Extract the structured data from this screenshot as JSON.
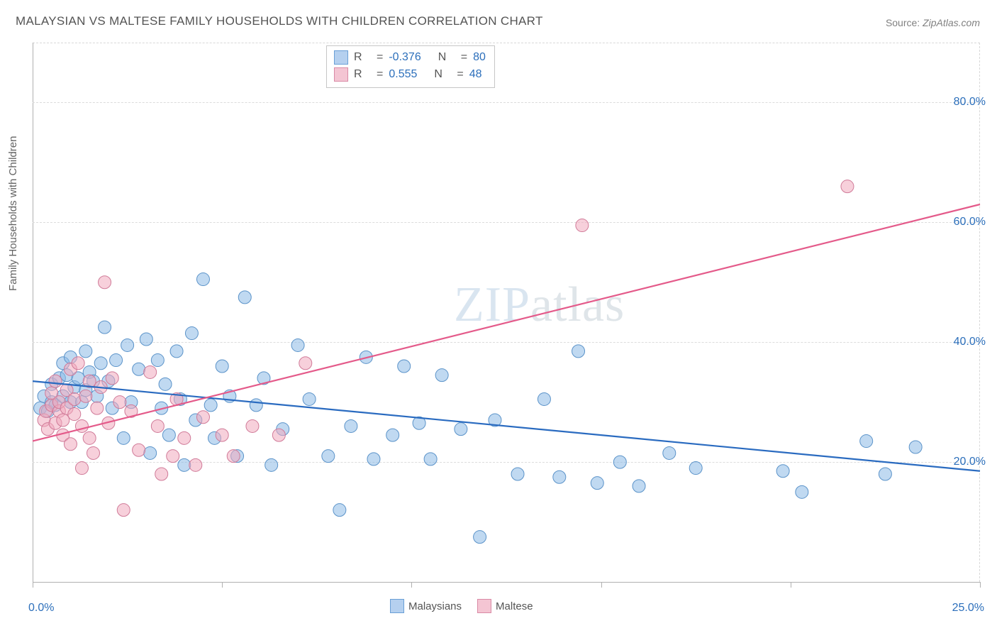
{
  "title": "MALAYSIAN VS MALTESE FAMILY HOUSEHOLDS WITH CHILDREN CORRELATION CHART",
  "source_label": "Source: ",
  "source_name": "ZipAtlas.com",
  "y_axis_title": "Family Households with Children",
  "watermark_a": "ZIP",
  "watermark_b": "atlas",
  "chart": {
    "type": "scatter",
    "xlim": [
      0,
      25
    ],
    "ylim": [
      0,
      90
    ],
    "x_ticks": [
      0,
      5,
      10,
      15,
      20,
      25
    ],
    "x_labels_shown": {
      "0": "0.0%",
      "25": "25.0%"
    },
    "y_gridlines": [
      20,
      40,
      60,
      80
    ],
    "y_labels": {
      "20": "20.0%",
      "40": "40.0%",
      "60": "60.0%",
      "80": "80.0%"
    },
    "marker_radius": 9,
    "background_color": "#ffffff",
    "grid_color": "#dcdcdc",
    "axis_color": "#b0b0b0",
    "label_color": "#2c6fbb",
    "series": [
      {
        "name": "Malaysians",
        "color_fill": "rgba(140,185,230,0.55)",
        "color_stroke": "#5b93c9",
        "trend_color": "#2a6bc0",
        "R": "-0.376",
        "N": "80",
        "trend": {
          "x1": 0,
          "y1": 33.5,
          "x2": 25,
          "y2": 18.5
        },
        "points": [
          [
            0.2,
            29
          ],
          [
            0.3,
            31
          ],
          [
            0.4,
            28.5
          ],
          [
            0.5,
            33
          ],
          [
            0.5,
            30
          ],
          [
            0.6,
            29.5
          ],
          [
            0.7,
            34
          ],
          [
            0.8,
            36.5
          ],
          [
            0.8,
            31
          ],
          [
            0.9,
            34.5
          ],
          [
            1.0,
            30
          ],
          [
            1.0,
            37.5
          ],
          [
            1.1,
            32.5
          ],
          [
            1.2,
            34
          ],
          [
            1.3,
            30
          ],
          [
            1.4,
            32
          ],
          [
            1.4,
            38.5
          ],
          [
            1.5,
            35
          ],
          [
            1.6,
            33.5
          ],
          [
            1.7,
            31
          ],
          [
            1.8,
            36.5
          ],
          [
            1.9,
            42.5
          ],
          [
            2.0,
            33.5
          ],
          [
            2.1,
            29
          ],
          [
            2.2,
            37
          ],
          [
            2.4,
            24
          ],
          [
            2.5,
            39.5
          ],
          [
            2.6,
            30
          ],
          [
            2.8,
            35.5
          ],
          [
            3.0,
            40.5
          ],
          [
            3.1,
            21.5
          ],
          [
            3.3,
            37
          ],
          [
            3.4,
            29
          ],
          [
            3.5,
            33
          ],
          [
            3.6,
            24.5
          ],
          [
            3.8,
            38.5
          ],
          [
            3.9,
            30.5
          ],
          [
            4.0,
            19.5
          ],
          [
            4.2,
            41.5
          ],
          [
            4.3,
            27
          ],
          [
            4.5,
            50.5
          ],
          [
            4.7,
            29.5
          ],
          [
            4.8,
            24
          ],
          [
            5.0,
            36
          ],
          [
            5.2,
            31
          ],
          [
            5.4,
            21
          ],
          [
            5.6,
            47.5
          ],
          [
            5.9,
            29.5
          ],
          [
            6.1,
            34
          ],
          [
            6.3,
            19.5
          ],
          [
            6.6,
            25.5
          ],
          [
            7.0,
            39.5
          ],
          [
            7.3,
            30.5
          ],
          [
            7.8,
            21
          ],
          [
            8.1,
            12
          ],
          [
            8.4,
            26
          ],
          [
            8.8,
            37.5
          ],
          [
            9.0,
            20.5
          ],
          [
            9.5,
            24.5
          ],
          [
            9.8,
            36
          ],
          [
            10.2,
            26.5
          ],
          [
            10.5,
            20.5
          ],
          [
            10.8,
            34.5
          ],
          [
            11.3,
            25.5
          ],
          [
            11.8,
            7.5
          ],
          [
            12.2,
            27
          ],
          [
            12.8,
            18
          ],
          [
            13.5,
            30.5
          ],
          [
            13.9,
            17.5
          ],
          [
            14.4,
            38.5
          ],
          [
            14.9,
            16.5
          ],
          [
            15.5,
            20
          ],
          [
            16.0,
            16
          ],
          [
            16.8,
            21.5
          ],
          [
            17.5,
            19
          ],
          [
            19.8,
            18.5
          ],
          [
            20.3,
            15
          ],
          [
            22.0,
            23.5
          ],
          [
            22.5,
            18
          ],
          [
            23.3,
            22.5
          ]
        ]
      },
      {
        "name": "Maltese",
        "color_fill": "rgba(240,170,190,0.55)",
        "color_stroke": "#d07a98",
        "trend_color": "#e45a8a",
        "R": "0.555",
        "N": "48",
        "trend": {
          "x1": 0,
          "y1": 23.5,
          "x2": 25,
          "y2": 63
        },
        "points": [
          [
            0.3,
            27
          ],
          [
            0.35,
            28.5
          ],
          [
            0.4,
            25.5
          ],
          [
            0.5,
            29.5
          ],
          [
            0.5,
            31.5
          ],
          [
            0.6,
            26.5
          ],
          [
            0.6,
            33.5
          ],
          [
            0.7,
            28.5
          ],
          [
            0.7,
            30
          ],
          [
            0.8,
            27
          ],
          [
            0.8,
            24.5
          ],
          [
            0.9,
            29
          ],
          [
            0.9,
            32
          ],
          [
            1.0,
            23
          ],
          [
            1.0,
            35.5
          ],
          [
            1.1,
            28
          ],
          [
            1.1,
            30.5
          ],
          [
            1.2,
            36.5
          ],
          [
            1.3,
            26
          ],
          [
            1.3,
            19
          ],
          [
            1.4,
            31
          ],
          [
            1.5,
            24
          ],
          [
            1.5,
            33.5
          ],
          [
            1.6,
            21.5
          ],
          [
            1.7,
            29
          ],
          [
            1.8,
            32.5
          ],
          [
            1.9,
            50
          ],
          [
            2.0,
            26.5
          ],
          [
            2.1,
            34
          ],
          [
            2.3,
            30
          ],
          [
            2.4,
            12
          ],
          [
            2.6,
            28.5
          ],
          [
            2.8,
            22
          ],
          [
            3.1,
            35
          ],
          [
            3.3,
            26
          ],
          [
            3.4,
            18
          ],
          [
            3.7,
            21
          ],
          [
            3.8,
            30.5
          ],
          [
            4.0,
            24
          ],
          [
            4.3,
            19.5
          ],
          [
            4.5,
            27.5
          ],
          [
            5.0,
            24.5
          ],
          [
            5.3,
            21
          ],
          [
            5.8,
            26
          ],
          [
            6.5,
            24.5
          ],
          [
            7.2,
            36.5
          ],
          [
            14.5,
            59.5
          ],
          [
            21.5,
            66
          ]
        ]
      }
    ]
  },
  "legend_top": {
    "rows": [
      {
        "swatch": "blue",
        "R": "-0.376",
        "N": "80"
      },
      {
        "swatch": "pink",
        "R": " 0.555",
        "N": "48"
      }
    ]
  },
  "legend_bottom": [
    {
      "swatch": "blue",
      "label": "Malaysians"
    },
    {
      "swatch": "pink",
      "label": "Maltese"
    }
  ]
}
